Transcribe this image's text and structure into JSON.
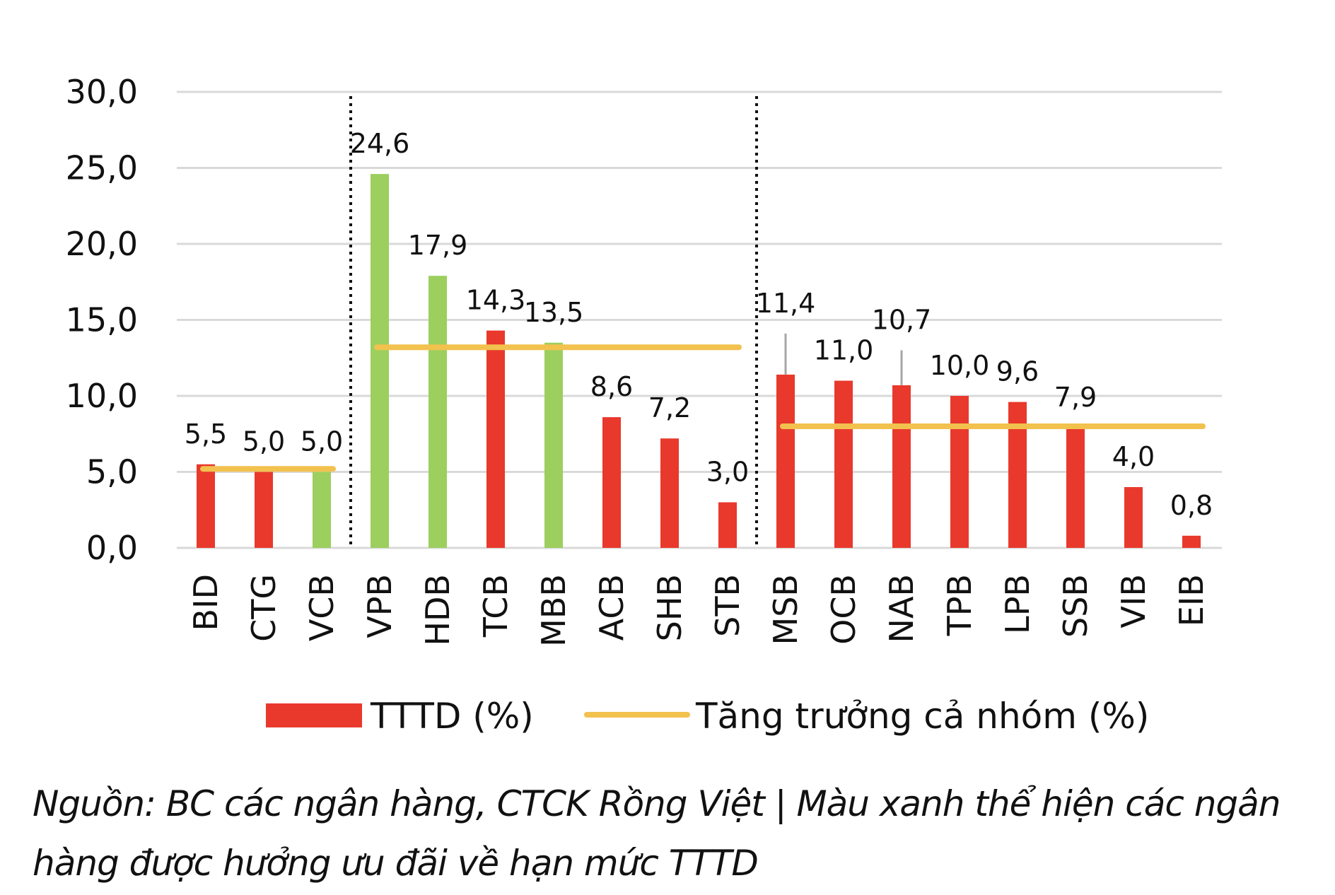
{
  "chart_data": {
    "type": "bar",
    "categories": [
      "BID",
      "CTG",
      "VCB",
      "VPB",
      "HDB",
      "TCB",
      "MBB",
      "ACB",
      "SHB",
      "STB",
      "MSB",
      "OCB",
      "NAB",
      "TPB",
      "LPB",
      "SSB",
      "VIB",
      "EIB"
    ],
    "values": [
      5.5,
      5.0,
      5.0,
      24.6,
      17.9,
      14.3,
      13.5,
      8.6,
      7.2,
      3.0,
      11.4,
      11.0,
      10.7,
      10.0,
      9.6,
      7.9,
      4.0,
      0.8
    ],
    "value_labels": [
      "5,5",
      "5,0",
      "5,0",
      "24,6",
      "17,9",
      "14,3",
      "13,5",
      "8,6",
      "7,2",
      "3,0",
      "11,4",
      "11,0",
      "10,7",
      "10,0",
      "9,6",
      "7,9",
      "4,0",
      "0,8"
    ],
    "highlighted": [
      false,
      false,
      true,
      true,
      true,
      false,
      true,
      false,
      false,
      false,
      false,
      false,
      false,
      false,
      false,
      false,
      false,
      false
    ],
    "error_bars": [
      {
        "category": "MSB",
        "upper": 14.1
      },
      {
        "category": "NAB",
        "upper": 13.0
      }
    ],
    "group_lines": [
      {
        "from": "BID",
        "to": "VCB",
        "value": 5.2
      },
      {
        "from": "VPB",
        "to": "STB",
        "value": 13.2
      },
      {
        "from": "MSB",
        "to": "EIB",
        "value": 8.0
      }
    ],
    "group_separators_after": [
      "VCB",
      "STB"
    ],
    "ylim": [
      0,
      30
    ],
    "yticks": [
      0,
      5,
      10,
      15,
      20,
      25,
      30
    ],
    "ytick_labels": [
      "0,0",
      "5,0",
      "10,0",
      "15,0",
      "20,0",
      "25,0",
      "30,0"
    ],
    "grid": true,
    "legend_position": "bottom",
    "legend": {
      "bar_label": "TTTD (%)",
      "line_label": "Tăng trưởng cả nhóm (%)"
    },
    "colors": {
      "bar": "#e8392c",
      "bar_highlight": "#9ccf5e",
      "group_line": "#f2c14e",
      "error_bar": "#a6a6a6",
      "grid": "#d9d9d9",
      "separator": "#111111"
    }
  },
  "source_note": {
    "line1": "Nguồn: BC các ngân hàng, CTCK Rồng Việt | Màu xanh thể hiện các ngân",
    "line2": "hàng được hưởng ưu đãi về hạn mức TTTD"
  }
}
